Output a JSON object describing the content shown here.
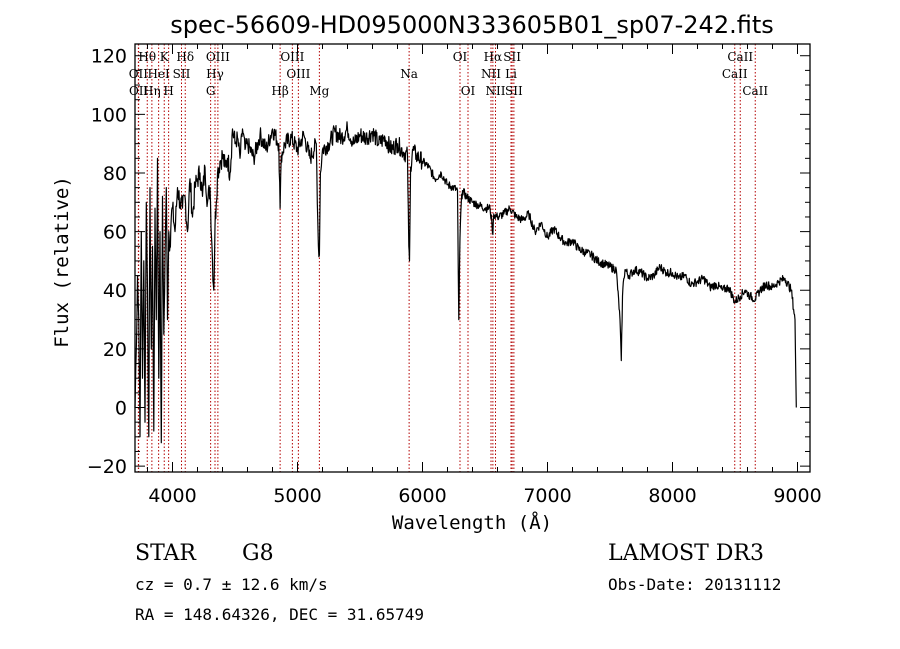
{
  "chart_data": {
    "type": "line",
    "title": "spec-56609-HD095000N333605B01_sp07-242.fits",
    "xlabel": "Wavelength (Å)",
    "ylabel": "Flux (relative)",
    "xlim": [
      3700,
      9100
    ],
    "ylim": [
      -22,
      124
    ],
    "xticks": [
      4000,
      5000,
      6000,
      7000,
      8000,
      9000
    ],
    "xtick_labels": [
      "4000",
      "5000",
      "6000",
      "7000",
      "8000",
      "9000"
    ],
    "yticks": [
      -20,
      0,
      20,
      40,
      60,
      80,
      100,
      120
    ],
    "ytick_labels": [
      "−20",
      "0",
      "20",
      "40",
      "60",
      "80",
      "100",
      "120"
    ],
    "spectrum": {
      "name": "flux",
      "x": [
        3700,
        3710,
        3720,
        3730,
        3740,
        3750,
        3760,
        3770,
        3780,
        3790,
        3800,
        3810,
        3820,
        3830,
        3840,
        3850,
        3860,
        3870,
        3880,
        3890,
        3900,
        3910,
        3920,
        3930,
        3940,
        3950,
        3960,
        3970,
        3980,
        3990,
        4000,
        4020,
        4040,
        4060,
        4080,
        4100,
        4120,
        4140,
        4160,
        4180,
        4200,
        4220,
        4240,
        4260,
        4280,
        4300,
        4320,
        4330,
        4340,
        4350,
        4360,
        4380,
        4400,
        4420,
        4440,
        4460,
        4480,
        4500,
        4520,
        4540,
        4560,
        4580,
        4600,
        4650,
        4700,
        4750,
        4800,
        4850,
        4861,
        4870,
        4900,
        4950,
        5000,
        5050,
        5100,
        5150,
        5167,
        5175,
        5183,
        5200,
        5250,
        5300,
        5350,
        5400,
        5450,
        5500,
        5550,
        5600,
        5650,
        5700,
        5750,
        5800,
        5850,
        5880,
        5890,
        5896,
        5905,
        5920,
        5950,
        6000,
        6050,
        6100,
        6150,
        6200,
        6250,
        6280,
        6290,
        6300,
        6310,
        6320,
        6350,
        6400,
        6450,
        6500,
        6540,
        6555,
        6563,
        6570,
        6600,
        6650,
        6700,
        6750,
        6800,
        6850,
        6900,
        6950,
        7000,
        7050,
        7100,
        7150,
        7200,
        7250,
        7300,
        7350,
        7400,
        7450,
        7500,
        7550,
        7580,
        7590,
        7600,
        7610,
        7620,
        7650,
        7700,
        7750,
        7800,
        7850,
        7900,
        7950,
        8000,
        8050,
        8100,
        8150,
        8200,
        8250,
        8300,
        8350,
        8400,
        8450,
        8498,
        8542,
        8580,
        8620,
        8662,
        8700,
        8750,
        8800,
        8850,
        8900,
        8950,
        8980,
        8990
      ],
      "y": [
        0,
        20,
        45,
        30,
        -10,
        60,
        10,
        50,
        -5,
        70,
        40,
        -10,
        75,
        20,
        55,
        -8,
        68,
        30,
        85,
        10,
        60,
        -12,
        72,
        25,
        50,
        75,
        30,
        60,
        55,
        65,
        68,
        60,
        75,
        70,
        68,
        72,
        60,
        78,
        65,
        75,
        78,
        80,
        72,
        82,
        70,
        75,
        50,
        40,
        62,
        70,
        80,
        84,
        86,
        82,
        85,
        80,
        95,
        90,
        92,
        85,
        95,
        88,
        90,
        85,
        93,
        88,
        95,
        90,
        68,
        86,
        90,
        92,
        88,
        93,
        85,
        90,
        55,
        52,
        80,
        88,
        90,
        94,
        92,
        95,
        90,
        93,
        92,
        94,
        90,
        92,
        88,
        90,
        87,
        86,
        55,
        50,
        82,
        88,
        86,
        84,
        82,
        78,
        80,
        76,
        75,
        74,
        30,
        58,
        70,
        74,
        72,
        70,
        69,
        68,
        68,
        63,
        59,
        66,
        65,
        66,
        68,
        65,
        64,
        66,
        60,
        63,
        58,
        61,
        58,
        56,
        57,
        54,
        53,
        52,
        50,
        49,
        48,
        47,
        30,
        16,
        38,
        44,
        47,
        45,
        47,
        46,
        44,
        45,
        48,
        46,
        46,
        44,
        45,
        42,
        43,
        44,
        41,
        42,
        40,
        41,
        36,
        38,
        40,
        38,
        37,
        40,
        42,
        41,
        43,
        44,
        40,
        30,
        0
      ]
    },
    "line_markers": [
      {
        "label": "Hθ",
        "wavelength": 3798,
        "row": 0
      },
      {
        "label": "OII",
        "wavelength": 3727,
        "row": 1
      },
      {
        "label": "OII",
        "wavelength": 3729,
        "row": 2
      },
      {
        "label": "Hη",
        "wavelength": 3835,
        "row": 2
      },
      {
        "label": "K",
        "wavelength": 3934,
        "row": 0
      },
      {
        "label": "HeI",
        "wavelength": 3889,
        "row": 1
      },
      {
        "label": "H",
        "wavelength": 3969,
        "row": 2
      },
      {
        "label": "Hδ",
        "wavelength": 4102,
        "row": 0
      },
      {
        "label": "SII",
        "wavelength": 4072,
        "row": 1
      },
      {
        "label": "OIII",
        "wavelength": 4363,
        "row": 0
      },
      {
        "label": "Hγ",
        "wavelength": 4340,
        "row": 1
      },
      {
        "label": "G",
        "wavelength": 4305,
        "row": 2
      },
      {
        "label": "OIII",
        "wavelength": 4959,
        "row": 0
      },
      {
        "label": "OIII",
        "wavelength": 5007,
        "row": 1
      },
      {
        "label": "Hβ",
        "wavelength": 4861,
        "row": 2
      },
      {
        "label": "Mg",
        "wavelength": 5175,
        "row": 2
      },
      {
        "label": "Na",
        "wavelength": 5893,
        "row": 1
      },
      {
        "label": "OI",
        "wavelength": 6300,
        "row": 0
      },
      {
        "label": "OI",
        "wavelength": 6364,
        "row": 2
      },
      {
        "label": "Hα",
        "wavelength": 6563,
        "row": 0
      },
      {
        "label": "SII",
        "wavelength": 6717,
        "row": 0
      },
      {
        "label": "NII",
        "wavelength": 6548,
        "row": 1
      },
      {
        "label": "Li",
        "wavelength": 6708,
        "row": 1
      },
      {
        "label": "NII",
        "wavelength": 6584,
        "row": 2
      },
      {
        "label": "SII",
        "wavelength": 6731,
        "row": 2
      },
      {
        "label": "CaII",
        "wavelength": 8542,
        "row": 0
      },
      {
        "label": "CaII",
        "wavelength": 8498,
        "row": 1
      },
      {
        "label": "CaII",
        "wavelength": 8662,
        "row": 2
      }
    ],
    "marker_color": "#b30000"
  },
  "info": {
    "class": "STAR",
    "subclass": "G8",
    "survey": "LAMOST DR3",
    "redshift": "cz = 0.7 ± 12.6 km/s",
    "obs_date": "Obs-Date: 20131112",
    "coords": "RA = 148.64326, DEC =  31.65749"
  }
}
